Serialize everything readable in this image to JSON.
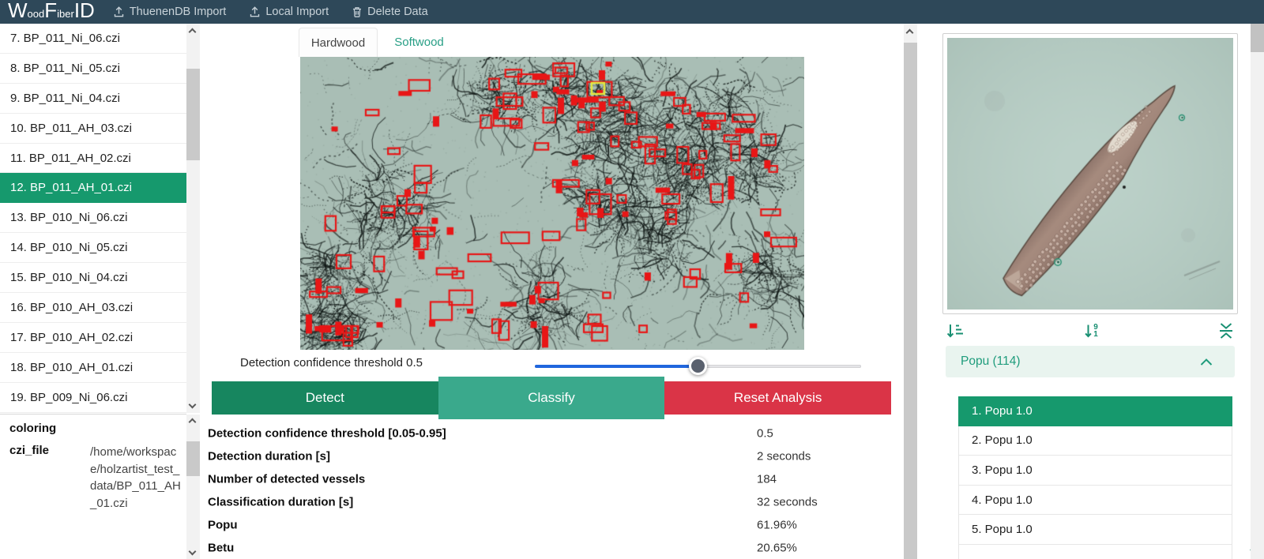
{
  "colors": {
    "header_bg": "#2e4859",
    "accent_green": "#16996d",
    "teal": "#279e85",
    "icon_teal": "#188f72",
    "button_detect": "#17865f",
    "button_classify": "#3aa98c",
    "button_reset": "#da3447",
    "slider_blue": "#2066dd",
    "detection_box_red": "#e81616",
    "selected_box_yellow": "#e4e93c",
    "micrograph_bg": "#a9beb5",
    "fiber_bg": "#b6cdc4"
  },
  "header": {
    "logo": [
      {
        "t": "W"
      },
      {
        "t": "ood"
      },
      {
        "t": "F"
      },
      {
        "t": "iber"
      },
      {
        "t": "ID"
      }
    ],
    "menu": [
      {
        "label": "ThuenenDB Import"
      },
      {
        "label": "Local Import"
      },
      {
        "label": "Delete Data"
      }
    ]
  },
  "file_list": {
    "selected_index": 5,
    "items": [
      "7. BP_011_Ni_06.czi",
      "8. BP_011_Ni_05.czi",
      "9. BP_011_Ni_04.czi",
      "10. BP_011_AH_03.czi",
      "11. BP_011_AH_02.czi",
      "12. BP_011_AH_01.czi",
      "13. BP_010_Ni_06.czi",
      "14. BP_010_Ni_05.czi",
      "15. BP_010_Ni_04.czi",
      "16. BP_010_AH_03.czi",
      "17. BP_010_AH_02.czi",
      "18. BP_010_AH_01.czi",
      "19. BP_009_Ni_06.czi"
    ]
  },
  "properties": {
    "coloring_key": "coloring",
    "czi_key": "czi_file",
    "czi_value": "/home/workspace/holzartist_test_data/BP_011_AH_01.czi"
  },
  "tabs": {
    "hardwood": "Hardwood",
    "softwood": "Softwood",
    "active": "Hardwood"
  },
  "detection": {
    "slider_label": "Detection confidence threshold 0.5",
    "value": 0.5,
    "min": 0.05,
    "max": 0.95,
    "percent": 50
  },
  "buttons": {
    "detect": "Detect",
    "classify": "Classify",
    "reset": "Reset Analysis"
  },
  "results": {
    "rows": [
      {
        "label": "Detection confidence threshold [0.05-0.95]",
        "value": "0.5"
      },
      {
        "label": "Detection duration [s]",
        "value": "2 seconds"
      },
      {
        "label": "Number of detected vessels",
        "value": "184"
      },
      {
        "label": "Classification duration [s]",
        "value": "32 seconds"
      },
      {
        "label": "Popu",
        "value": "61.96%"
      },
      {
        "label": "Betu",
        "value": "20.65%"
      }
    ]
  },
  "right_panel": {
    "group_label": "Popu (114)",
    "selected_index": 0,
    "items": [
      "1. Popu 1.0",
      "2. Popu 1.0",
      "3. Popu 1.0",
      "4. Popu 1.0",
      "5. Popu 1.0"
    ]
  }
}
